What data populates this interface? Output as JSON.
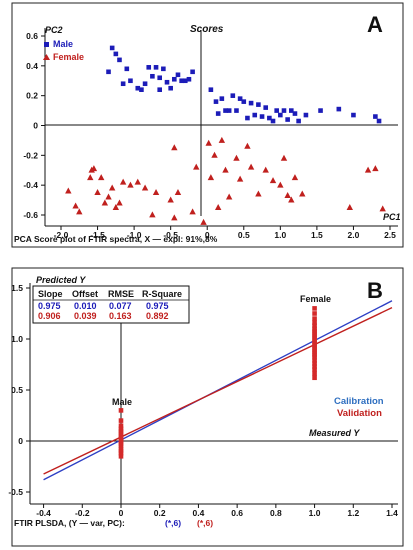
{
  "chart_data": [
    {
      "panel_label": "A",
      "type": "scatter",
      "title": "Scores",
      "xlabel": "PC1",
      "ylabel": "PC2",
      "caption": "PCA Score plot of FTIR spectra,  X — expl: 91%,8%",
      "xlim": [
        -2.1,
        2.55
      ],
      "ylim": [
        -0.66,
        0.64
      ],
      "x_ticks": [
        -2.0,
        -1.5,
        -1.0,
        -0.5,
        0,
        0.5,
        1.0,
        1.5,
        2.0,
        2.5
      ],
      "x_tick_labels": [
        "-2.0",
        "-1.5",
        "-1.0",
        "-0.5",
        "0",
        "0.5",
        "1.0",
        "1.5",
        "2.0",
        "2.5"
      ],
      "y_ticks": [
        0.6,
        0.4,
        0.2,
        0,
        -0.2,
        -0.4,
        -0.6
      ],
      "y_tick_labels": [
        "0.6",
        "0.4",
        "0.2",
        "0",
        "-0.2",
        "-0.4",
        "-0.6"
      ],
      "legend_position": "top-left",
      "series": [
        {
          "name": "Male",
          "color": "#1c1cb8",
          "marker": "square",
          "points": [
            [
              -1.3,
              0.52
            ],
            [
              -1.25,
              0.48
            ],
            [
              -1.2,
              0.44
            ],
            [
              -1.1,
              0.38
            ],
            [
              -1.35,
              0.36
            ],
            [
              -1.05,
              0.3
            ],
            [
              -1.15,
              0.28
            ],
            [
              -0.95,
              0.25
            ],
            [
              -0.9,
              0.24
            ],
            [
              -0.85,
              0.28
            ],
            [
              -0.75,
              0.33
            ],
            [
              -0.7,
              0.39
            ],
            [
              -0.65,
              0.32
            ],
            [
              -0.6,
              0.38
            ],
            [
              -0.55,
              0.29
            ],
            [
              -0.5,
              0.25
            ],
            [
              -0.45,
              0.31
            ],
            [
              -0.4,
              0.34
            ],
            [
              -0.35,
              0.3
            ],
            [
              -0.3,
              0.3
            ],
            [
              -0.25,
              0.31
            ],
            [
              -0.2,
              0.36
            ],
            [
              -0.8,
              0.39
            ],
            [
              -0.65,
              0.24
            ],
            [
              0.05,
              0.24
            ],
            [
              0.15,
              0.08
            ],
            [
              0.2,
              0.18
            ],
            [
              0.25,
              0.1
            ],
            [
              0.3,
              0.1
            ],
            [
              0.35,
              0.2
            ],
            [
              0.4,
              0.1
            ],
            [
              0.45,
              0.18
            ],
            [
              0.5,
              0.16
            ],
            [
              0.55,
              0.05
            ],
            [
              0.6,
              0.15
            ],
            [
              0.65,
              0.07
            ],
            [
              0.7,
              0.14
            ],
            [
              0.8,
              0.12
            ],
            [
              0.85,
              0.05
            ],
            [
              0.9,
              0.03
            ],
            [
              0.95,
              0.1
            ],
            [
              1.0,
              0.07
            ],
            [
              1.05,
              0.1
            ],
            [
              1.1,
              0.04
            ],
            [
              1.15,
              0.1
            ],
            [
              1.2,
              0.08
            ],
            [
              1.35,
              0.07
            ],
            [
              1.55,
              0.1
            ],
            [
              1.8,
              0.11
            ],
            [
              2.0,
              0.07
            ],
            [
              2.3,
              0.06
            ],
            [
              2.35,
              0.03
            ],
            [
              0.12,
              0.16
            ],
            [
              0.75,
              0.06
            ],
            [
              1.25,
              0.03
            ]
          ]
        },
        {
          "name": "Female",
          "color": "#c0201e",
          "marker": "triangle",
          "points": [
            [
              -1.9,
              -0.44
            ],
            [
              -1.8,
              -0.54
            ],
            [
              -1.75,
              -0.58
            ],
            [
              -1.6,
              -0.35
            ],
            [
              -1.55,
              -0.29
            ],
            [
              -1.5,
              -0.45
            ],
            [
              -1.45,
              -0.35
            ],
            [
              -1.4,
              -0.52
            ],
            [
              -1.35,
              -0.48
            ],
            [
              -1.3,
              -0.42
            ],
            [
              -1.25,
              -0.55
            ],
            [
              -1.2,
              -0.52
            ],
            [
              -1.15,
              -0.38
            ],
            [
              -1.05,
              -0.4
            ],
            [
              -0.95,
              -0.38
            ],
            [
              -0.85,
              -0.42
            ],
            [
              -0.75,
              -0.6
            ],
            [
              -0.7,
              -0.45
            ],
            [
              -0.5,
              -0.5
            ],
            [
              -0.45,
              -0.62
            ],
            [
              -0.4,
              -0.45
            ],
            [
              -0.2,
              -0.58
            ],
            [
              -0.15,
              -0.28
            ],
            [
              -0.05,
              -0.65
            ],
            [
              -0.45,
              -0.15
            ],
            [
              0.02,
              -0.12
            ],
            [
              0.1,
              -0.2
            ],
            [
              0.15,
              -0.55
            ],
            [
              0.2,
              -0.1
            ],
            [
              0.25,
              -0.3
            ],
            [
              0.3,
              -0.48
            ],
            [
              0.4,
              -0.22
            ],
            [
              0.45,
              -0.36
            ],
            [
              0.55,
              -0.14
            ],
            [
              0.6,
              -0.28
            ],
            [
              0.7,
              -0.46
            ],
            [
              0.8,
              -0.3
            ],
            [
              0.9,
              -0.37
            ],
            [
              1.0,
              -0.4
            ],
            [
              1.05,
              -0.22
            ],
            [
              1.1,
              -0.47
            ],
            [
              1.15,
              -0.5
            ],
            [
              1.2,
              -0.35
            ],
            [
              1.3,
              -0.46
            ],
            [
              1.95,
              -0.55
            ],
            [
              2.2,
              -0.3
            ],
            [
              2.3,
              -0.29
            ],
            [
              2.4,
              -0.56
            ],
            [
              0.05,
              -0.35
            ],
            [
              -1.58,
              -0.3
            ]
          ]
        }
      ]
    },
    {
      "panel_label": "B",
      "type": "scatter",
      "title": "Predicted Y",
      "xlabel": "Measured Y",
      "caption_main": "FTIR PLSDA, (Y — var, PC):",
      "caption_cal": "(*,6)",
      "caption_val": "(*,6)",
      "xlim": [
        -0.45,
        1.42
      ],
      "ylim": [
        -0.52,
        1.55
      ],
      "x_ticks": [
        -0.4,
        -0.2,
        0,
        0.2,
        0.4,
        0.6,
        0.8,
        1.0,
        1.2,
        1.4
      ],
      "x_tick_labels": [
        "-0.4",
        "-0.2",
        "0",
        "0.2",
        "0.4",
        "0.6",
        "0.8",
        "1.0",
        "1.2",
        "1.4"
      ],
      "y_ticks": [
        1.5,
        1.0,
        0.5,
        0,
        -0.5
      ],
      "y_tick_labels": [
        "1.5",
        "1.0",
        "0.5",
        "0",
        "-0.5"
      ],
      "annotations": [
        {
          "text": "Male",
          "x": -0.04,
          "y": 0.36
        },
        {
          "text": "Female",
          "x": 0.92,
          "y": 1.34
        }
      ],
      "stats_table": {
        "headers": [
          "Slope",
          "Offset",
          "RMSE",
          "R-Square"
        ],
        "rows": [
          {
            "color": "#1c1cb8",
            "values": [
              "0.975",
              "0.010",
              "0.077",
              "0.975"
            ]
          },
          {
            "color": "#c0201e",
            "values": [
              "0.906",
              "0.039",
              "0.163",
              "0.892"
            ]
          }
        ]
      },
      "legend": [
        {
          "name": "Calibration",
          "color": "#2f6fc0"
        },
        {
          "name": "Validation",
          "color": "#c0201e"
        }
      ],
      "lines": [
        {
          "name": "Calibration",
          "color": "#2d3fc4",
          "slope": 0.975,
          "offset": 0.01,
          "x_range": [
            -0.4,
            1.4
          ]
        },
        {
          "name": "Validation",
          "color": "#c0201e",
          "slope": 0.906,
          "offset": 0.039,
          "x_range": [
            -0.4,
            1.4
          ]
        }
      ],
      "series": [
        {
          "name": "Male",
          "color": "#d42a2a",
          "x": 0,
          "y_values": [
            -0.15,
            -0.12,
            -0.1,
            -0.08,
            -0.05,
            -0.03,
            -0.01,
            0.0,
            0.02,
            0.04,
            0.06,
            0.08,
            0.1,
            0.12,
            0.15,
            0.2,
            0.3
          ]
        },
        {
          "name": "Female",
          "color": "#d42a2a",
          "x": 1,
          "y_values": [
            0.62,
            0.66,
            0.7,
            0.73,
            0.76,
            0.79,
            0.82,
            0.84,
            0.86,
            0.88,
            0.9,
            0.92,
            0.94,
            0.96,
            0.98,
            1.0,
            1.02,
            1.04,
            1.06,
            1.08,
            1.1,
            1.13,
            1.16,
            1.2,
            1.25,
            1.3
          ]
        }
      ]
    }
  ]
}
